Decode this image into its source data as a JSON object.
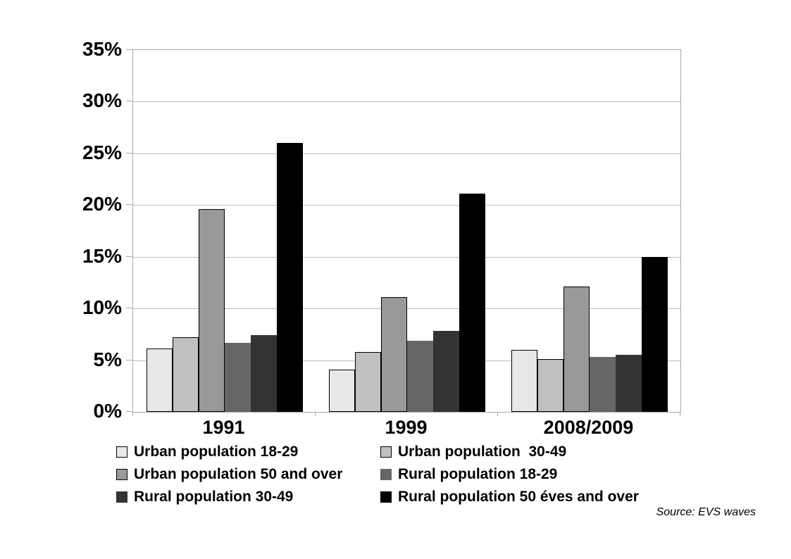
{
  "chart_data": {
    "type": "bar",
    "title": "",
    "xlabel": "",
    "ylabel": "",
    "categories": [
      "1991",
      "1999",
      "2008/2009"
    ],
    "series": [
      {
        "name": "Urban population 18-29",
        "values": [
          6.1,
          4.1,
          6.0
        ],
        "color": "#e8e8e8",
        "border": "#000000"
      },
      {
        "name": "Urban population  30-49",
        "values": [
          7.2,
          5.8,
          5.1
        ],
        "color": "#c0c0c0",
        "border": "#000000"
      },
      {
        "name": "Urban population 50 and over",
        "values": [
          19.6,
          11.1,
          12.1
        ],
        "color": "#999999",
        "border": "#000000"
      },
      {
        "name": "Rural population 18-29",
        "values": [
          6.7,
          6.9,
          5.3
        ],
        "color": "#666666",
        "border": "none"
      },
      {
        "name": "Rural population 30-49",
        "values": [
          7.4,
          7.8,
          5.5
        ],
        "color": "#333333",
        "border": "none"
      },
      {
        "name": "Rural population 50 éves and over",
        "values": [
          26.0,
          21.1,
          15.0
        ],
        "color": "#000000",
        "border": "none"
      }
    ],
    "ylim": [
      0,
      35
    ],
    "y_tick_step": 5,
    "y_tick_labels": [
      "0%",
      "5%",
      "10%",
      "15%",
      "20%",
      "25%",
      "30%",
      "35%"
    ],
    "grid": true,
    "legend_position": "bottom",
    "legend_columns": 2,
    "source_note": "Source: EVS waves"
  },
  "colors": {
    "background": "#ffffff",
    "gridline": "#bdbdbd",
    "axis_frame": "#a9a9a9",
    "text": "#000000"
  }
}
